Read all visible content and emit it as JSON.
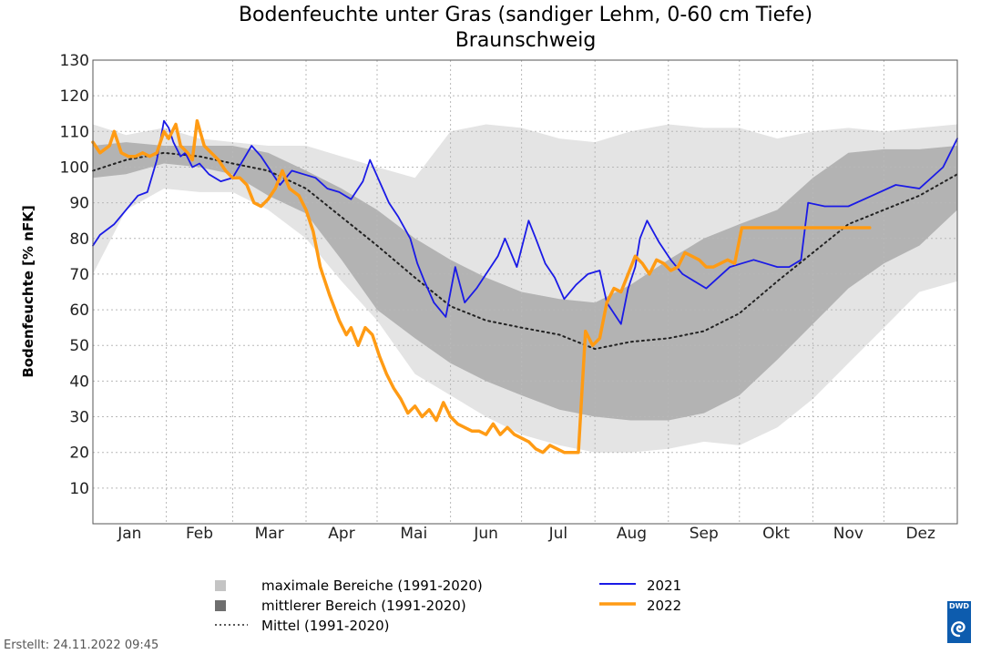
{
  "chart_data": {
    "type": "line",
    "title": "Bodenfeuchte unter Gras (sandiger Lehm, 0-60 cm Tiefe)",
    "subtitle": "Braunschweig",
    "xlabel": "",
    "ylabel": "Bodenfeuchte [% nFK]",
    "ylim": [
      0,
      130
    ],
    "yticks": [
      10,
      20,
      30,
      40,
      50,
      60,
      70,
      80,
      90,
      100,
      110,
      120,
      130
    ],
    "xlim": [
      1,
      366
    ],
    "x_unit": "day of year",
    "months": [
      "Jan",
      "Feb",
      "Mar",
      "Apr",
      "Mai",
      "Jun",
      "Jul",
      "Aug",
      "Sep",
      "Okt",
      "Nov",
      "Dez"
    ],
    "grid": true,
    "legend_position": "bottom",
    "legend": {
      "max_range": "maximale Bereiche (1991-2020)",
      "mid_range": "mittlerer Bereich (1991-2020)",
      "mean": "Mittel (1991-2020)",
      "s2021": "2021",
      "s2022": "2022"
    },
    "colors": {
      "max_range": "#e4e4e4",
      "mid_range": "#b3b3b3",
      "mean": "#222222",
      "s2021": "#1a1ae6",
      "s2022": "#ff9b14",
      "grid": "#b8b8b8"
    },
    "bands": {
      "max_range": {
        "x": [
          1,
          15,
          31,
          46,
          60,
          75,
          91,
          106,
          121,
          137,
          152,
          167,
          182,
          198,
          213,
          228,
          244,
          259,
          274,
          290,
          305,
          320,
          335,
          350,
          366
        ],
        "upper": [
          112,
          109,
          111,
          108,
          107,
          106,
          106,
          103,
          100,
          97,
          110,
          112,
          111,
          108,
          107,
          110,
          112,
          111,
          111,
          108,
          110,
          111,
          110,
          111,
          112
        ],
        "lower": [
          70,
          88,
          94,
          93,
          93,
          88,
          80,
          68,
          57,
          42,
          36,
          30,
          25,
          22,
          20,
          20,
          21,
          23,
          22,
          27,
          35,
          45,
          55,
          65,
          68
        ]
      },
      "mid_range": {
        "x": [
          1,
          15,
          31,
          46,
          60,
          75,
          91,
          106,
          121,
          137,
          152,
          167,
          182,
          198,
          213,
          228,
          244,
          259,
          274,
          290,
          305,
          320,
          335,
          350,
          366
        ],
        "upper": [
          106,
          107,
          106,
          106,
          106,
          104,
          99,
          94,
          88,
          80,
          74,
          69,
          65,
          63,
          62,
          67,
          74,
          80,
          84,
          88,
          97,
          104,
          105,
          105,
          106
        ],
        "lower": [
          97,
          98,
          101,
          100,
          98,
          92,
          87,
          74,
          60,
          52,
          45,
          40,
          36,
          32,
          30,
          29,
          29,
          31,
          36,
          46,
          56,
          66,
          73,
          78,
          88
        ]
      }
    },
    "series": [
      {
        "name": "Mittel (1991-2020)",
        "x": [
          1,
          15,
          31,
          46,
          60,
          75,
          91,
          106,
          121,
          137,
          152,
          167,
          182,
          198,
          213,
          228,
          244,
          259,
          274,
          290,
          305,
          320,
          335,
          350,
          366
        ],
        "y": [
          99,
          102,
          104,
          103,
          101,
          99,
          94,
          86,
          78,
          69,
          61,
          57,
          55,
          53,
          49,
          51,
          52,
          54,
          59,
          68,
          76,
          84,
          88,
          92,
          98
        ]
      },
      {
        "name": "2021",
        "x": [
          1,
          4,
          10,
          15,
          20,
          24,
          28,
          31,
          33,
          35,
          38,
          40,
          43,
          46,
          50,
          55,
          60,
          68,
          72,
          75,
          80,
          85,
          90,
          95,
          100,
          105,
          110,
          115,
          118,
          122,
          126,
          130,
          135,
          138,
          141,
          145,
          150,
          154,
          158,
          163,
          167,
          172,
          175,
          180,
          185,
          188,
          192,
          196,
          200,
          205,
          210,
          215,
          218,
          221,
          224,
          227,
          230,
          232,
          235,
          240,
          245,
          250,
          255,
          260,
          265,
          270,
          275,
          280,
          285,
          290,
          295,
          300,
          303,
          310,
          320,
          330,
          340,
          350,
          360,
          363,
          366
        ],
        "y": [
          78,
          81,
          84,
          88,
          92,
          93,
          102,
          113,
          111,
          107,
          103,
          104,
          100,
          101,
          98,
          96,
          97,
          106,
          103,
          100,
          95,
          99,
          98,
          97,
          94,
          93,
          91,
          96,
          102,
          96,
          90,
          86,
          80,
          73,
          68,
          62,
          58,
          72,
          62,
          66,
          70,
          75,
          80,
          72,
          85,
          80,
          73,
          69,
          63,
          67,
          70,
          71,
          62,
          59,
          56,
          66,
          72,
          80,
          85,
          79,
          74,
          70,
          68,
          66,
          69,
          72,
          73,
          74,
          73,
          72,
          72,
          74,
          90,
          89,
          89,
          92,
          95,
          94,
          100,
          104,
          108
        ]
      },
      {
        "name": "2022",
        "x": [
          1,
          4,
          8,
          10,
          13,
          16,
          19,
          22,
          25,
          28,
          31,
          33,
          36,
          38,
          41,
          43,
          45,
          48,
          51,
          54,
          57,
          60,
          63,
          66,
          69,
          72,
          75,
          78,
          81,
          84,
          88,
          91,
          94,
          97,
          101,
          105,
          108,
          110,
          113,
          116,
          119,
          122,
          125,
          128,
          131,
          134,
          137,
          140,
          143,
          146,
          149,
          152,
          155,
          158,
          161,
          164,
          167,
          170,
          173,
          176,
          179,
          182,
          185,
          188,
          191,
          194,
          197,
          200,
          203,
          206,
          209,
          212,
          215,
          218,
          221,
          224,
          227,
          230,
          233,
          236,
          239,
          242,
          245,
          248,
          251,
          254,
          257,
          260,
          263,
          266,
          269,
          272,
          275,
          278,
          281,
          284,
          287,
          290,
          293,
          296,
          299,
          302,
          305,
          308,
          311,
          314,
          317,
          320,
          323,
          326,
          329
        ],
        "y": [
          107,
          104,
          106,
          110,
          104,
          103,
          103,
          104,
          103,
          104,
          110,
          108,
          112,
          106,
          104,
          102,
          113,
          106,
          104,
          102,
          99,
          97,
          97,
          95,
          90,
          89,
          91,
          94,
          99,
          94,
          92,
          88,
          82,
          72,
          64,
          57,
          53,
          55,
          50,
          55,
          53,
          47,
          42,
          38,
          35,
          31,
          33,
          30,
          32,
          29,
          34,
          30,
          28,
          27,
          26,
          26,
          25,
          28,
          25,
          27,
          25,
          24,
          23,
          21,
          20,
          22,
          21,
          20,
          20,
          20,
          54,
          50,
          52,
          62,
          66,
          65,
          70,
          75,
          73,
          70,
          74,
          73,
          71,
          72,
          76,
          75,
          74,
          72,
          72,
          73,
          74,
          73,
          83,
          83,
          83,
          83,
          83,
          83,
          83,
          83,
          83,
          83,
          83,
          83,
          83,
          83,
          83,
          83,
          83,
          83,
          83
        ]
      }
    ]
  },
  "footer": {
    "created": "Erstellt:  24.11.2022 09:45",
    "logo_text": "DWD"
  }
}
